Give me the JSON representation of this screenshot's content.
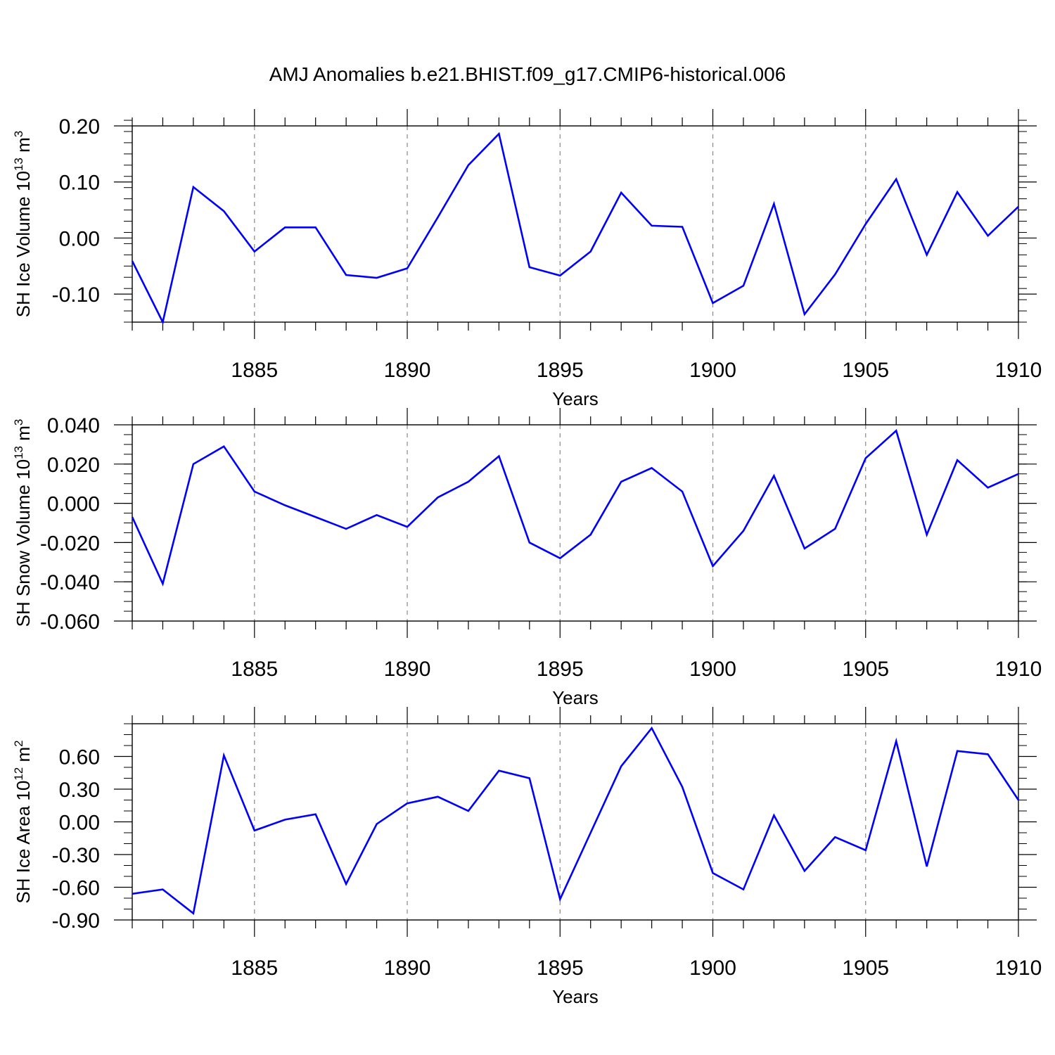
{
  "figure": {
    "title": "AMJ Anomalies b.e21.BHIST.f09_g17.CMIP6-historical.006"
  },
  "colors": {
    "series": "#0000ff",
    "axis": "#000000",
    "grid": "#888888"
  },
  "chart_data": [
    {
      "type": "line",
      "name": "ice-volume",
      "ylabel": "SH Ice Volume 10",
      "ylabel_exp": "13",
      "ylabel_unit": " m",
      "ylabel_unit_exp": "3",
      "xlabel": "Years",
      "xlim": [
        1881,
        1910
      ],
      "ylim": [
        -0.15,
        0.2
      ],
      "yticks": [
        -0.1,
        0.0,
        0.1,
        0.2
      ],
      "ytick_labels": [
        "-0.10",
        "0.00",
        "0.10",
        "0.20"
      ],
      "yminor_step": 0.02,
      "xticks": [
        1885,
        1890,
        1895,
        1900,
        1905,
        1910
      ],
      "xtick_labels": [
        "1885",
        "1890",
        "1895",
        "1900",
        "1905",
        "1910"
      ],
      "grid_x": [
        1885,
        1890,
        1895,
        1900,
        1905
      ],
      "series": [
        {
          "name": "SH Ice Volume",
          "x": [
            1881,
            1882,
            1883,
            1884,
            1885,
            1886,
            1887,
            1888,
            1889,
            1890,
            1891,
            1892,
            1893,
            1894,
            1895,
            1896,
            1897,
            1898,
            1899,
            1900,
            1901,
            1902,
            1903,
            1904,
            1905,
            1906,
            1907,
            1908,
            1909,
            1910
          ],
          "values": [
            -0.041,
            -0.15,
            0.091,
            0.048,
            -0.024,
            0.019,
            0.019,
            -0.066,
            -0.071,
            -0.054,
            0.037,
            0.13,
            0.186,
            -0.052,
            -0.067,
            -0.024,
            0.081,
            0.022,
            0.02,
            -0.116,
            -0.085,
            0.061,
            -0.136,
            -0.065,
            0.025,
            0.105,
            -0.03,
            0.082,
            0.004,
            0.056
          ]
        }
      ]
    },
    {
      "type": "line",
      "name": "snow-volume",
      "ylabel": "SH Snow Volume 10",
      "ylabel_exp": "13",
      "ylabel_unit": " m",
      "ylabel_unit_exp": "3",
      "xlabel": "Years",
      "xlim": [
        1881,
        1910
      ],
      "ylim": [
        -0.06,
        0.04
      ],
      "yticks": [
        -0.06,
        -0.04,
        -0.02,
        0.0,
        0.02,
        0.04
      ],
      "ytick_labels": [
        "-0.060",
        "-0.040",
        "-0.020",
        "0.000",
        "0.020",
        "0.040"
      ],
      "yminor_step": 0.005,
      "xticks": [
        1885,
        1890,
        1895,
        1900,
        1905,
        1910
      ],
      "xtick_labels": [
        "1885",
        "1890",
        "1895",
        "1900",
        "1905",
        "1910"
      ],
      "grid_x": [
        1885,
        1890,
        1895,
        1900,
        1905
      ],
      "series": [
        {
          "name": "SH Snow Volume",
          "x": [
            1881,
            1882,
            1883,
            1884,
            1885,
            1886,
            1887,
            1888,
            1889,
            1890,
            1891,
            1892,
            1893,
            1894,
            1895,
            1896,
            1897,
            1898,
            1899,
            1900,
            1901,
            1902,
            1903,
            1904,
            1905,
            1906,
            1907,
            1908,
            1909,
            1910
          ],
          "values": [
            -0.007,
            -0.041,
            0.02,
            0.029,
            0.006,
            -0.001,
            -0.007,
            -0.013,
            -0.006,
            -0.012,
            0.003,
            0.011,
            0.024,
            -0.02,
            -0.028,
            -0.016,
            0.011,
            0.018,
            0.006,
            -0.032,
            -0.014,
            0.014,
            -0.023,
            -0.013,
            0.023,
            0.037,
            -0.016,
            0.022,
            0.008,
            0.015
          ]
        }
      ]
    },
    {
      "type": "line",
      "name": "ice-area",
      "ylabel": "SH Ice Area 10",
      "ylabel_exp": "12",
      "ylabel_unit": " m",
      "ylabel_unit_exp": "2",
      "xlabel": "Years",
      "xlim": [
        1881,
        1910
      ],
      "ylim": [
        -0.9,
        0.9
      ],
      "yticks": [
        -0.9,
        -0.6,
        -0.3,
        0.0,
        0.3,
        0.6
      ],
      "ytick_labels": [
        "-0.90",
        "-0.60",
        "-0.30",
        "0.00",
        "0.30",
        "0.60"
      ],
      "yminor_step": 0.1,
      "xticks": [
        1885,
        1890,
        1895,
        1900,
        1905,
        1910
      ],
      "xtick_labels": [
        "1885",
        "1890",
        "1895",
        "1900",
        "1905",
        "1910"
      ],
      "grid_x": [
        1885,
        1890,
        1895,
        1900,
        1905
      ],
      "series": [
        {
          "name": "SH Ice Area",
          "x": [
            1881,
            1882,
            1883,
            1884,
            1885,
            1886,
            1887,
            1888,
            1889,
            1890,
            1891,
            1892,
            1893,
            1894,
            1895,
            1896,
            1897,
            1898,
            1899,
            1900,
            1901,
            1902,
            1903,
            1904,
            1905,
            1906,
            1907,
            1908,
            1909,
            1910
          ],
          "values": [
            -0.66,
            -0.62,
            -0.84,
            0.61,
            -0.08,
            0.02,
            0.07,
            -0.57,
            -0.02,
            0.17,
            0.23,
            0.1,
            0.47,
            0.4,
            -0.71,
            -0.1,
            0.51,
            0.86,
            0.32,
            -0.47,
            -0.62,
            0.06,
            -0.45,
            -0.14,
            -0.26,
            0.74,
            -0.41,
            0.65,
            0.62,
            0.2
          ]
        }
      ]
    }
  ]
}
